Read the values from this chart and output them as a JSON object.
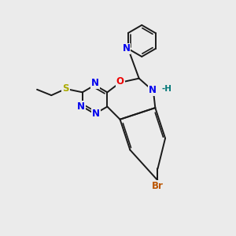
{
  "bg_color": "#ebebeb",
  "bond_color": "#1a1a1a",
  "bond_width": 1.4,
  "atom_colors": {
    "N": "#0000ee",
    "O": "#ee0000",
    "S": "#aaaa00",
    "Br": "#bb5500",
    "H": "#007777",
    "C": "#1a1a1a"
  },
  "font_size": 8.5
}
